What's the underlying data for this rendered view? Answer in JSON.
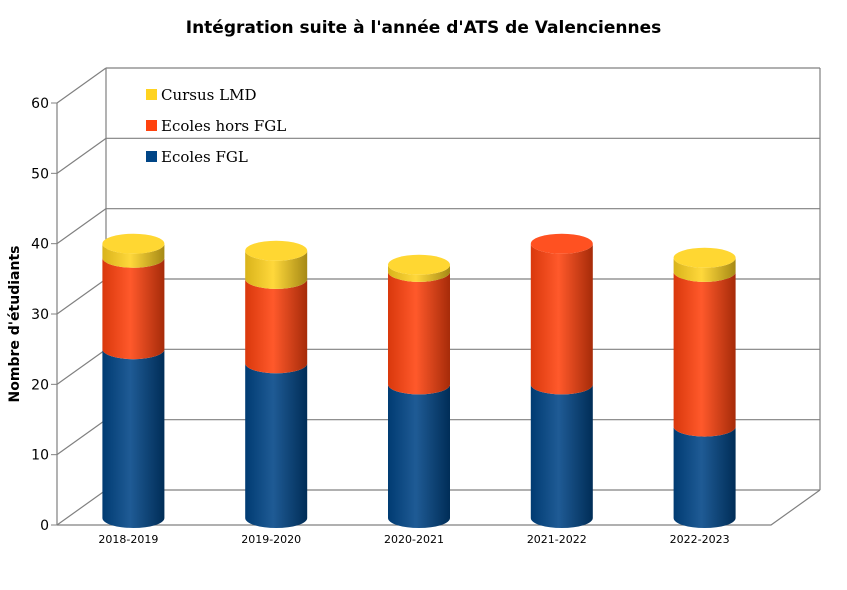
{
  "chart_data": {
    "type": "bar",
    "stacked": true,
    "style": "3d-cylinder",
    "title": "Intégration suite à l'année d'ATS de Valenciennes",
    "xlabel": "",
    "ylabel": "Nombre d'étudiants",
    "ylim": [
      0,
      60
    ],
    "yticks": [
      0,
      10,
      20,
      30,
      40,
      50,
      60
    ],
    "grid": true,
    "legend_position": "top-left",
    "categories": [
      "2018-2019",
      "2019-2020",
      "2020-2021",
      "2021-2022",
      "2022-2023"
    ],
    "series": [
      {
        "name": "Ecoles FGL",
        "color": "#004586",
        "values": [
          24,
          22,
          19,
          19,
          13
        ]
      },
      {
        "name": "Ecoles hors FGL",
        "color": "#ff420e",
        "values": [
          13,
          12,
          16,
          20,
          22
        ]
      },
      {
        "name": "Cursus LMD",
        "color": "#ffd320",
        "values": [
          2,
          4,
          1,
          0,
          2
        ]
      }
    ]
  }
}
